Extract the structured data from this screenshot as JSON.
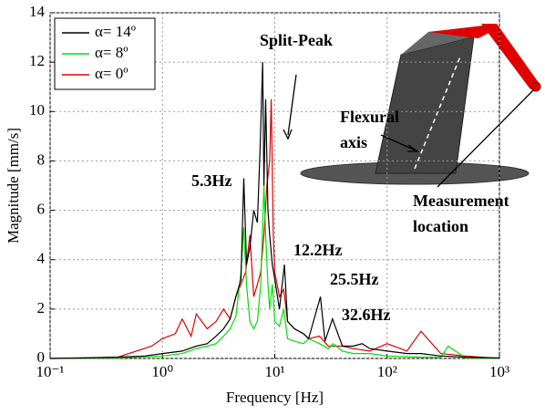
{
  "chart_data": {
    "type": "line",
    "xlabel": "Frequency [Hz]",
    "ylabel": "Magnitude [mm/s]",
    "xscale": "log",
    "grid": true,
    "legend": "upper left",
    "xlim": [
      0.1,
      1000
    ],
    "xticks": [
      {
        "value": 0.1,
        "label": "10⁻¹"
      },
      {
        "value": 1,
        "label": "10⁰"
      },
      {
        "value": 10,
        "label": "10¹"
      },
      {
        "value": 100,
        "label": "10²"
      },
      {
        "value": 1000,
        "label": "10³"
      }
    ],
    "ylim": [
      0,
      14
    ],
    "yticks": [
      0,
      2,
      4,
      6,
      8,
      10,
      12,
      14
    ],
    "series": [
      {
        "name": "α= 14º",
        "color": "#000000",
        "x": [
          0.1,
          0.2,
          0.4,
          0.7,
          1,
          1.5,
          2,
          2.5,
          3,
          3.5,
          4,
          4.5,
          5,
          5.3,
          5.6,
          6,
          6.5,
          7,
          7.4,
          7.8,
          8,
          8.3,
          8.7,
          9,
          9.5,
          10,
          11,
          12.2,
          13,
          15,
          18,
          20,
          25.5,
          28,
          32.6,
          40,
          50,
          60,
          70,
          100,
          150,
          200,
          300,
          500,
          1000
        ],
        "values": [
          0,
          0.02,
          0.05,
          0.1,
          0.2,
          0.3,
          0.5,
          0.6,
          0.9,
          1.2,
          1.6,
          2.5,
          3.2,
          7.3,
          3.8,
          4.5,
          6,
          5.5,
          8.5,
          12,
          7,
          10.5,
          6,
          5,
          3.8,
          3.2,
          2,
          3.8,
          1.5,
          1.2,
          1,
          0.8,
          2.5,
          0.7,
          1.6,
          0.5,
          0.5,
          0.6,
          0.4,
          0.3,
          0.2,
          0.2,
          0.1,
          0.05,
          0.02
        ]
      },
      {
        "name": "α= 8º",
        "color": "#00e000",
        "x": [
          0.1,
          0.4,
          1,
          1.5,
          2,
          2.5,
          3,
          3.5,
          4,
          4.5,
          5,
          5.3,
          5.6,
          6,
          6.5,
          7,
          7.5,
          8,
          8.3,
          8.7,
          9,
          9.5,
          10,
          11,
          12,
          13,
          15,
          18,
          20,
          25,
          30,
          33,
          40,
          50,
          70,
          100,
          200,
          300,
          350,
          500,
          1000
        ],
        "values": [
          0,
          0.02,
          0.1,
          0.2,
          0.4,
          0.5,
          0.6,
          0.9,
          1.2,
          1.7,
          3.5,
          5.3,
          3,
          1.5,
          1.2,
          1.5,
          3,
          7,
          5,
          3,
          2,
          3,
          1.5,
          1.3,
          2,
          0.8,
          0.7,
          0.6,
          0.8,
          0.6,
          0.4,
          0.6,
          0.3,
          0.2,
          0.2,
          0.1,
          0.05,
          0.05,
          0.5,
          0.02,
          0
        ]
      },
      {
        "name": "α= 0º",
        "color": "#e00000",
        "x": [
          0.1,
          0.4,
          0.8,
          1,
          1.3,
          1.5,
          1.8,
          2,
          2.5,
          3,
          3.5,
          4,
          4.5,
          5,
          5.5,
          6,
          6.5,
          7,
          7.5,
          8,
          8.5,
          9,
          9.3,
          9.7,
          10,
          11,
          12,
          13,
          15,
          18,
          20,
          25,
          30,
          40,
          50,
          70,
          100,
          150,
          200,
          300,
          500,
          1000
        ],
        "values": [
          0,
          0.05,
          0.5,
          0.8,
          1,
          1.6,
          0.9,
          1.8,
          1.2,
          1.5,
          2,
          1.6,
          2.5,
          3,
          3.5,
          5,
          2.5,
          3,
          3.5,
          5,
          7,
          8,
          10.5,
          5,
          3.5,
          2.5,
          2.8,
          1.5,
          1.2,
          1,
          0.8,
          0.9,
          0.5,
          0.5,
          0.4,
          0.3,
          0.6,
          0.3,
          1.1,
          0.2,
          0.1,
          0
        ]
      }
    ],
    "annotations": [
      [
        "Split-Peak"
      ],
      [
        "5.3Hz"
      ],
      [
        "12.2Hz"
      ],
      [
        "25.5Hz"
      ],
      [
        "32.6Hz"
      ],
      [
        "Flexural",
        "axis"
      ],
      [
        "Measurement",
        "location"
      ]
    ]
  }
}
